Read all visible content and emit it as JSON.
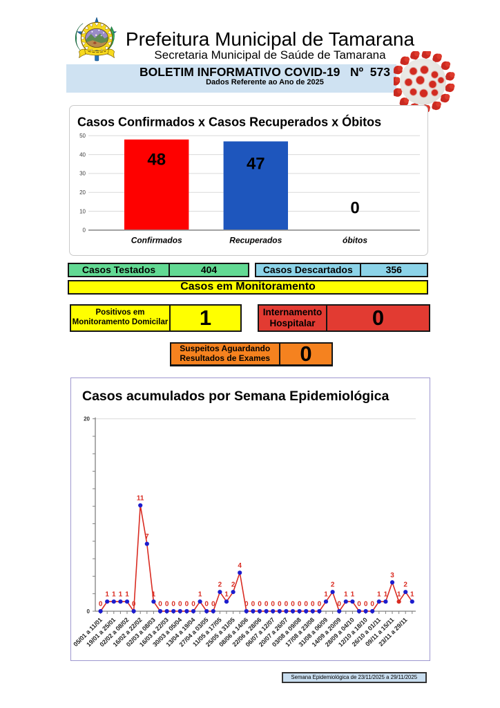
{
  "header": {
    "title": "Prefeitura Municipal de Tamarana",
    "subtitle": "Secretaria Municipal de Saúde de Tamarana",
    "banner_line1": "BOLETIM INFORMATIVO COVID-19   Nº  573",
    "banner_line2": "Dados Referente ao Ano de 2025",
    "banner_color": "#cfe2f2",
    "logo_icon": "tamarana-municipal-crest",
    "virus_icon": "coronavirus"
  },
  "stats": {
    "tested": {
      "label": "Casos Testados",
      "value": "404",
      "color": "#62d993"
    },
    "discarded": {
      "label": "Casos Descartados",
      "value": "356",
      "color": "#8cd3e8"
    },
    "monitoring_banner": {
      "label": "Casos em Monitoramento",
      "color": "#ffff00"
    },
    "positive_home": {
      "label_line1": "Positivos em",
      "label_line2": "Monitoramento Domicilar",
      "value": "1",
      "color": "#ffff00"
    },
    "hospitalized": {
      "label_line1": "Internamento",
      "label_line2": "Hospitalar",
      "value": "0",
      "color": "#e23b32"
    },
    "suspects": {
      "label_line1": "Suspeitos Aguardando",
      "label_line2": "Resultados de Exames",
      "value": "0",
      "color": "#f5821f"
    }
  },
  "chart_data": [
    {
      "type": "bar",
      "title": "Casos Confirmados x Casos Recuperados x Óbitos",
      "categories": [
        "Confirmados",
        "Recuperados",
        "óbitos"
      ],
      "values": [
        48,
        47,
        0
      ],
      "bar_colors": [
        "#fe0100",
        "#1e56bd",
        null
      ],
      "ylim": [
        0,
        50
      ],
      "yticks": [
        0,
        10,
        20,
        30,
        40,
        50
      ],
      "grid": true,
      "legend": "none",
      "value_labels": [
        "48",
        "47",
        "0"
      ]
    },
    {
      "type": "line",
      "title": "Casos acumulados por Semana Epidemiológica",
      "x": [
        "05/01 a 11/01",
        "19/01 a 25/01",
        "02/02 a 08/02",
        "16/02 a 22/02",
        "02/03 a 08/03",
        "16/03 a 22/03",
        "30/03 a 05/04",
        "13/04 a 19/04",
        "27/04 a 03/05",
        "11/05 a 17/05",
        "25/05 a 31/05",
        "08/06 a 14/06",
        "22/06 a 28/06",
        "06/07 a 12/07",
        "20/07 a 26/07",
        "03/08 a 09/08",
        "17/08 a 23/08",
        "31/08 a 06/09",
        "14/09 a 20/09",
        "28/09 a 04/10",
        "12/10 a 18/10",
        "26/10 a 01/11",
        "09/11 a 15/11",
        "23/11 a 29/11"
      ],
      "x_label_every": 2,
      "values": [
        0,
        1,
        1,
        1,
        1,
        0,
        11,
        7,
        1,
        0,
        0,
        0,
        0,
        0,
        0,
        1,
        0,
        0,
        2,
        1,
        2,
        4,
        0,
        0,
        0,
        0,
        0,
        0,
        0,
        0,
        0,
        0,
        0,
        0,
        1,
        2,
        0,
        1,
        1,
        0,
        0,
        0,
        1,
        1,
        3,
        1,
        2,
        1
      ],
      "ylim": [
        0,
        20
      ],
      "ytick_labels": [
        "0",
        "20"
      ],
      "line_color": "#d92b21",
      "marker_color": "#1d1dce",
      "special_marker_index": 45,
      "special_marker_color": "#d92b21",
      "data_label_color": "#d92b21",
      "grid": false,
      "legend": "none"
    }
  ],
  "footer": {
    "text": "Semana Epidemiológica de 23/11/2025 a 29/11/2025",
    "color": "#c8ddef"
  }
}
